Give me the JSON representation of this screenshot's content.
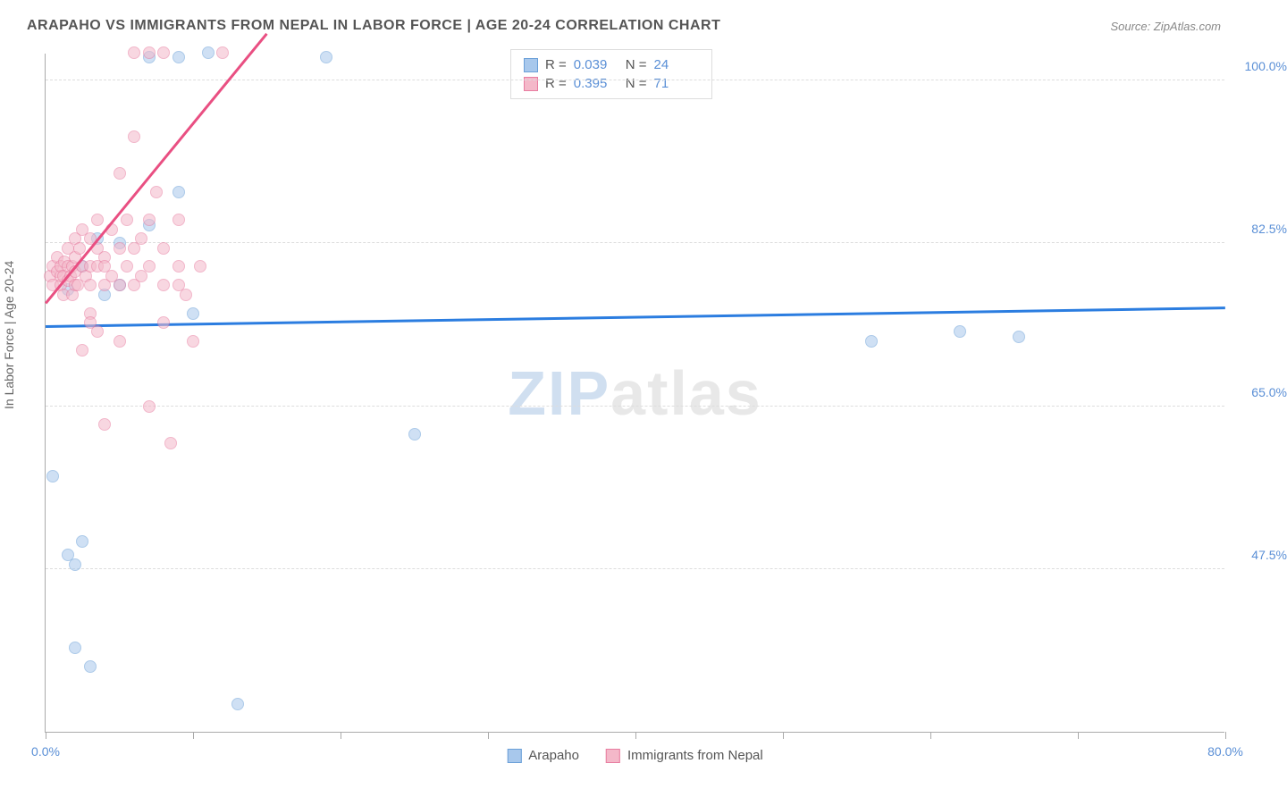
{
  "title": "ARAPAHO VS IMMIGRANTS FROM NEPAL IN LABOR FORCE | AGE 20-24 CORRELATION CHART",
  "source_label": "Source: ZipAtlas.com",
  "y_axis_label": "In Labor Force | Age 20-24",
  "watermark": {
    "part1": "ZIP",
    "part2": "atlas"
  },
  "chart": {
    "type": "scatter",
    "xlim": [
      0,
      80
    ],
    "ylim": [
      30,
      103
    ],
    "x_ticks": [
      0,
      10,
      20,
      30,
      40,
      50,
      60,
      70,
      80
    ],
    "x_tick_labels": {
      "0": "0.0%",
      "80": "80.0%"
    },
    "y_grid": [
      47.5,
      65.0,
      82.5,
      100.0
    ],
    "y_tick_labels": [
      "47.5%",
      "65.0%",
      "82.5%",
      "100.0%"
    ],
    "background_color": "#ffffff",
    "grid_color": "#dddddd",
    "axis_color": "#aaaaaa",
    "tick_label_color": "#5a8fd6",
    "point_radius": 7,
    "point_opacity": 0.55,
    "series": [
      {
        "name": "Arapaho",
        "color_fill": "#a8c8ec",
        "color_stroke": "#6a9fd8",
        "r_value": "0.039",
        "n_value": "24",
        "trend": {
          "x1": 0,
          "y1": 73.5,
          "x2": 80,
          "y2": 75.5,
          "color": "#2b7de0",
          "width": 2.5
        },
        "points": [
          [
            0.5,
            57.5
          ],
          [
            1.5,
            77.5
          ],
          [
            1.5,
            49
          ],
          [
            2,
            48
          ],
          [
            2.5,
            50.5
          ],
          [
            2,
            39
          ],
          [
            3,
            37
          ],
          [
            3.5,
            83
          ],
          [
            5,
            82.5
          ],
          [
            5,
            78
          ],
          [
            7,
            84.5
          ],
          [
            7,
            102.5
          ],
          [
            9,
            102.5
          ],
          [
            9,
            88
          ],
          [
            10,
            75
          ],
          [
            11,
            103
          ],
          [
            13,
            33
          ],
          [
            19,
            102.5
          ],
          [
            25,
            62
          ],
          [
            56,
            72
          ],
          [
            62,
            73
          ],
          [
            66,
            72.5
          ],
          [
            4,
            77
          ],
          [
            2.5,
            80
          ]
        ]
      },
      {
        "name": "Immigrants from Nepal",
        "color_fill": "#f4b8c9",
        "color_stroke": "#e87ca0",
        "r_value": "0.395",
        "n_value": "71",
        "trend": {
          "x1": 0,
          "y1": 76,
          "x2": 15,
          "y2": 105,
          "color": "#e94f82",
          "width": 2.5
        },
        "points": [
          [
            0.3,
            79
          ],
          [
            0.5,
            80
          ],
          [
            0.5,
            78
          ],
          [
            0.8,
            79.5
          ],
          [
            0.8,
            81
          ],
          [
            1,
            78
          ],
          [
            1,
            79
          ],
          [
            1,
            80
          ],
          [
            1.2,
            77
          ],
          [
            1.2,
            79
          ],
          [
            1.3,
            80.5
          ],
          [
            1.5,
            78.5
          ],
          [
            1.5,
            80
          ],
          [
            1.5,
            82
          ],
          [
            1.7,
            79
          ],
          [
            1.8,
            80
          ],
          [
            1.8,
            77
          ],
          [
            2,
            78
          ],
          [
            2,
            79.5
          ],
          [
            2,
            81
          ],
          [
            2,
            83
          ],
          [
            2.2,
            78
          ],
          [
            2.3,
            82
          ],
          [
            2.5,
            80
          ],
          [
            2.5,
            84
          ],
          [
            2.5,
            71
          ],
          [
            2.7,
            79
          ],
          [
            3,
            78
          ],
          [
            3,
            80
          ],
          [
            3,
            83
          ],
          [
            3,
            75
          ],
          [
            3,
            74
          ],
          [
            3.5,
            80
          ],
          [
            3.5,
            82
          ],
          [
            3.5,
            85
          ],
          [
            3.5,
            73
          ],
          [
            4,
            78
          ],
          [
            4,
            81
          ],
          [
            4,
            80
          ],
          [
            4,
            63
          ],
          [
            4.5,
            84
          ],
          [
            4.5,
            79
          ],
          [
            5,
            82
          ],
          [
            5,
            78
          ],
          [
            5,
            72
          ],
          [
            5,
            90
          ],
          [
            5.5,
            80
          ],
          [
            5.5,
            85
          ],
          [
            6,
            78
          ],
          [
            6,
            82
          ],
          [
            6,
            94
          ],
          [
            6.5,
            83
          ],
          [
            6.5,
            79
          ],
          [
            7,
            80
          ],
          [
            7,
            85
          ],
          [
            7,
            103
          ],
          [
            7,
            65
          ],
          [
            7.5,
            88
          ],
          [
            8,
            78
          ],
          [
            8,
            82
          ],
          [
            8,
            103
          ],
          [
            8,
            74
          ],
          [
            8.5,
            61
          ],
          [
            9,
            80
          ],
          [
            9,
            85
          ],
          [
            9,
            78
          ],
          [
            9.5,
            77
          ],
          [
            10,
            72
          ],
          [
            10.5,
            80
          ],
          [
            12,
            103
          ],
          [
            6,
            103
          ]
        ]
      }
    ]
  },
  "stats_box": {
    "r_label": "R =",
    "n_label": "N ="
  },
  "legend": [
    {
      "label": "Arapaho",
      "fill": "#a8c8ec",
      "stroke": "#6a9fd8"
    },
    {
      "label": "Immigrants from Nepal",
      "fill": "#f4b8c9",
      "stroke": "#e87ca0"
    }
  ]
}
